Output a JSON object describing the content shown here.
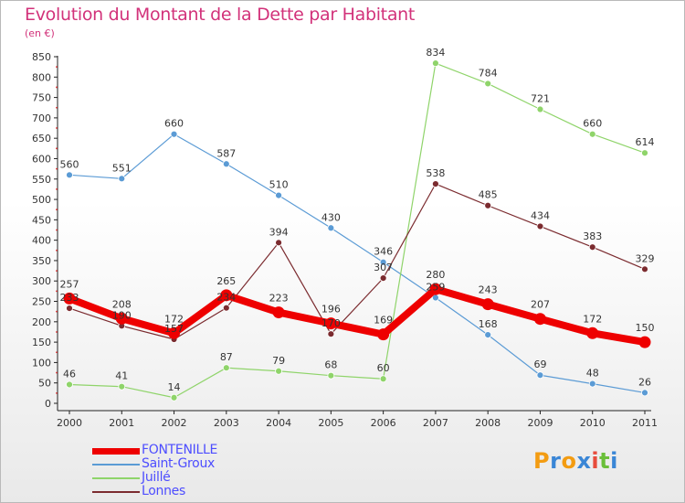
{
  "title": "Evolution du Montant de la Dette par Habitant",
  "subtitle": "(en €)",
  "logo": {
    "text": "Proxiti",
    "letters": [
      "P",
      "r",
      "o",
      "x",
      "i",
      "t",
      "i"
    ],
    "colors": [
      "#f39c12",
      "#3a86d6",
      "#f39c12",
      "#3a86d6",
      "#e74c3c",
      "#6bbf3a",
      "#3a86d6"
    ]
  },
  "chart_data": {
    "type": "line",
    "title": "Evolution du Montant de la Dette par Habitant",
    "subtitle": "(en €)",
    "xlabel": "",
    "ylabel": "",
    "categories": [
      "2000",
      "2001",
      "2002",
      "2003",
      "2004",
      "2005",
      "2006",
      "2007",
      "2008",
      "2009",
      "2010",
      "2011"
    ],
    "ylim": [
      0,
      850
    ],
    "yticks": [
      0,
      50,
      100,
      150,
      200,
      250,
      300,
      350,
      400,
      450,
      500,
      550,
      600,
      650,
      700,
      750,
      800,
      850
    ],
    "grid": false,
    "legend_position": "bottom-left",
    "series": [
      {
        "name": "Saint-Groux",
        "color": "#5b9bd5",
        "width": 1.2,
        "marker": 3.5,
        "values": [
          560,
          551,
          660,
          587,
          510,
          430,
          346,
          259,
          168,
          69,
          48,
          26
        ]
      },
      {
        "name": "Juillé",
        "color": "#8fd46a",
        "width": 1.2,
        "marker": 3.5,
        "values": [
          46,
          41,
          14,
          87,
          79,
          68,
          60,
          834,
          784,
          721,
          660,
          614
        ]
      },
      {
        "name": "Lonnes",
        "color": "#7b2b2f",
        "width": 1.2,
        "marker": 3.5,
        "values": [
          233,
          190,
          157,
          234,
          394,
          170,
          307,
          538,
          485,
          434,
          383,
          329
        ]
      },
      {
        "name": "FONTENILLE",
        "color": "#ee0000",
        "width": 8,
        "marker": 6.5,
        "values": [
          257,
          208,
          172,
          265,
          223,
          196,
          169,
          280,
          243,
          207,
          172,
          150
        ]
      }
    ],
    "legend_order": [
      "FONTENILLE",
      "Saint-Groux",
      "Juillé",
      "Lonnes"
    ]
  }
}
